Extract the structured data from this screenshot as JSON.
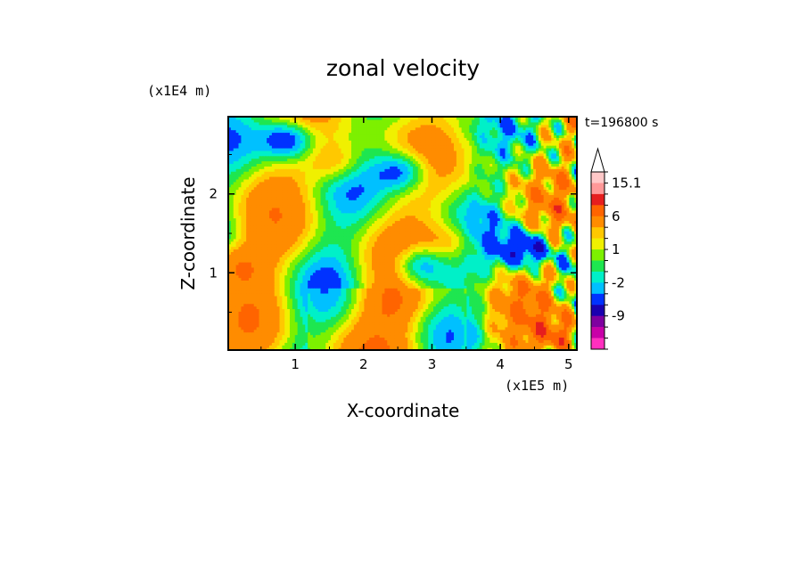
{
  "chart_data": {
    "type": "heatmap",
    "title": "zonal velocity",
    "xlabel": "X-coordinate",
    "ylabel": "Z-coordinate",
    "x_scale_label": "(x1E5 m)",
    "y_scale_label": "(x1E4 m)",
    "time_label": "t=196800 s",
    "xlim": [
      0.02,
      5.12
    ],
    "ylim": [
      0.02,
      2.98
    ],
    "x_ticks": [
      1,
      2,
      3,
      4,
      5
    ],
    "y_ticks": [
      1,
      2
    ],
    "colorbar": {
      "levels": [
        "-15",
        "-12",
        "-9",
        "-6",
        "-3",
        "-2",
        "-1",
        "0",
        "1",
        "2",
        "3",
        "6",
        "9",
        "12",
        "15.1"
      ],
      "labels": [
        "15.1",
        "6",
        "1",
        "-2",
        "-9"
      ],
      "colors": [
        "#ff2fbf",
        "#c800a8",
        "#7f00a0",
        "#1a00b0",
        "#0032ff",
        "#00c0ff",
        "#00f0c8",
        "#1ee650",
        "#7df000",
        "#f0f000",
        "#ffc800",
        "#ff8c00",
        "#ff6400",
        "#e61e1e",
        "#ff9898",
        "#ffc8c8"
      ],
      "extend": "max"
    },
    "features": [
      {
        "x": 4.4,
        "z": 1.3,
        "v": -8
      },
      {
        "x": 2.8,
        "z": 1.1,
        "v": -7
      },
      {
        "x": 0.9,
        "z": 2.7,
        "v": -7
      },
      {
        "x": 2.6,
        "z": 2.3,
        "v": -6
      },
      {
        "x": 1.6,
        "z": 2.4,
        "v": 4
      },
      {
        "x": 3.3,
        "z": 1.4,
        "v": 4
      },
      {
        "x": 0.1,
        "z": 1.1,
        "v": 5
      },
      {
        "x": 2.4,
        "z": 0.6,
        "v": 2
      },
      {
        "x": 4.9,
        "z": 0.2,
        "v": 6
      }
    ]
  }
}
